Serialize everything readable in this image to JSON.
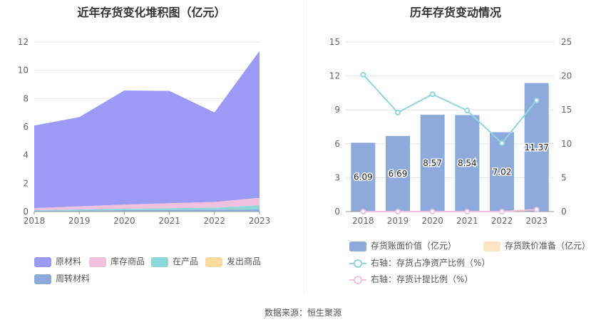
{
  "source_text": "数据来源：恒生聚源",
  "chart_data": [
    {
      "type": "area",
      "title": "近年存货变化堆积图（亿元）",
      "x": [
        "2018",
        "2019",
        "2020",
        "2021",
        "2022",
        "2023"
      ],
      "ylim": [
        0,
        12
      ],
      "yticks": [
        0,
        2,
        4,
        6,
        8,
        10,
        12
      ],
      "grid": true,
      "stacked": true,
      "legend_position": "bottom",
      "series": [
        {
          "name": "周转材料",
          "color": "#8eaadc",
          "values": [
            0.05,
            0.07,
            0.1,
            0.12,
            0.13,
            0.15
          ]
        },
        {
          "name": "在产品",
          "color": "#8ed8dc",
          "values": [
            0.05,
            0.08,
            0.1,
            0.12,
            0.15,
            0.3
          ]
        },
        {
          "name": "库存商品",
          "color": "#f0c0de",
          "values": [
            0.15,
            0.22,
            0.3,
            0.35,
            0.4,
            0.5
          ]
        },
        {
          "name": "发出商品",
          "color": "#fcd9a0",
          "values": [
            0.0,
            0.0,
            0.0,
            0.0,
            0.0,
            0.02
          ]
        },
        {
          "name": "原材料",
          "color": "#9b9bf6",
          "values": [
            5.84,
            6.32,
            8.07,
            7.95,
            6.34,
            10.4
          ]
        }
      ],
      "legend_order": [
        "原材料",
        "库存商品",
        "在产品",
        "发出商品",
        "周转材料"
      ]
    },
    {
      "type": "bar",
      "title": "历年存货变动情况",
      "categories": [
        "2018",
        "2019",
        "2020",
        "2021",
        "2022",
        "2023"
      ],
      "ylim": [
        0,
        15
      ],
      "yticks": [
        0,
        3,
        6,
        9,
        12,
        15
      ],
      "y2lim": [
        0,
        25
      ],
      "y2ticks": [
        0,
        5,
        10,
        15,
        20,
        25
      ],
      "grid": true,
      "legend_position": "bottom",
      "series": [
        {
          "name": "存货账面价值（亿元）",
          "kind": "bar",
          "axis": "left",
          "color": "#8eaadc",
          "values": [
            6.09,
            6.69,
            8.57,
            8.54,
            7.02,
            11.37
          ],
          "labels": [
            "6.09",
            "6.69",
            "8.57",
            "8.54",
            "7.02",
            "11.37"
          ]
        },
        {
          "name": "存货跌价准备（亿元）",
          "kind": "bar",
          "axis": "left",
          "color": "#fde4c4",
          "values": [
            0,
            0,
            0,
            0,
            0,
            0
          ]
        },
        {
          "name": "右轴：存货占净资产比例（%）",
          "kind": "line",
          "axis": "right",
          "color": "#8ed8dc",
          "values": [
            20.2,
            14.6,
            17.3,
            14.9,
            10.1,
            16.4
          ]
        },
        {
          "name": "右轴：存货计提比例（%）",
          "kind": "line",
          "axis": "right",
          "color": "#f0c0de",
          "values": [
            0,
            0,
            0,
            0,
            0,
            0.3
          ]
        }
      ]
    }
  ]
}
